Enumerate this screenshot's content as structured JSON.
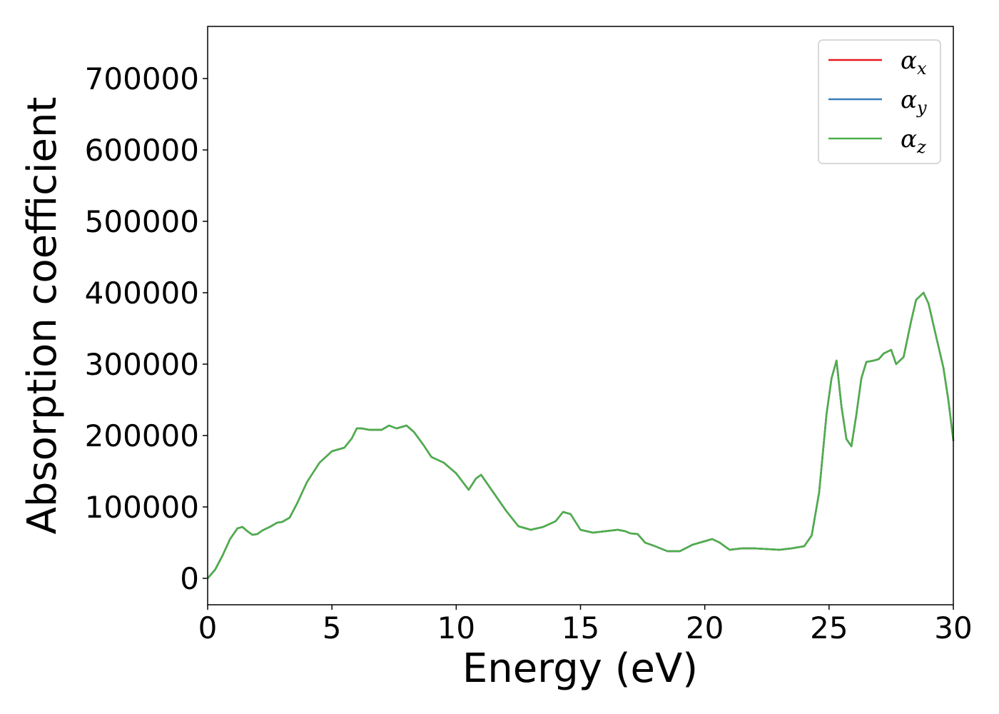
{
  "chart_data": {
    "type": "line",
    "title": "",
    "xlabel": "Energy (eV)",
    "ylabel": "Absorption coefficient",
    "xlim": [
      0,
      30
    ],
    "ylim": [
      -37000,
      773000
    ],
    "xticks": [
      0,
      5,
      10,
      15,
      20,
      25,
      30
    ],
    "xtick_labels": [
      "0",
      "5",
      "10",
      "15",
      "20",
      "25",
      "30"
    ],
    "yticks": [
      0,
      100000,
      200000,
      300000,
      400000,
      500000,
      600000,
      700000
    ],
    "ytick_labels": [
      "0",
      "100000",
      "200000",
      "300000",
      "400000",
      "500000",
      "600000",
      "700000"
    ],
    "grid": false,
    "legend_position": "top-right",
    "x": [
      0,
      0.3,
      0.6,
      0.9,
      1.2,
      1.4,
      1.6,
      1.8,
      2.0,
      2.2,
      2.5,
      2.8,
      3.0,
      3.3,
      3.6,
      4.0,
      4.5,
      5.0,
      5.5,
      5.8,
      6.0,
      6.2,
      6.5,
      7.0,
      7.3,
      7.6,
      8.0,
      8.3,
      8.7,
      9.0,
      9.5,
      10.0,
      10.5,
      10.8,
      11.0,
      11.5,
      12.0,
      12.5,
      13.0,
      13.5,
      14.0,
      14.3,
      14.6,
      15.0,
      15.5,
      16.0,
      16.5,
      16.8,
      17.0,
      17.3,
      17.6,
      18.0,
      18.5,
      19.0,
      19.5,
      20.0,
      20.3,
      20.6,
      21.0,
      21.5,
      22.0,
      22.5,
      23.0,
      23.5,
      24.0,
      24.3,
      24.6,
      24.9,
      25.1,
      25.3,
      25.5,
      25.7,
      25.9,
      26.1,
      26.3,
      26.5,
      26.8,
      27.0,
      27.2,
      27.5,
      27.7,
      28.0,
      28.3,
      28.5,
      28.8,
      29.0,
      29.3,
      29.6,
      29.8,
      30.0
    ],
    "series": [
      {
        "name": "α_x",
        "color": "#e41a1c",
        "values": [
          0,
          12000,
          32000,
          55000,
          70000,
          72000,
          66000,
          61000,
          62000,
          67000,
          72000,
          78000,
          79000,
          85000,
          105000,
          135000,
          162000,
          178000,
          183000,
          196000,
          210000,
          210000,
          208000,
          208000,
          214000,
          210000,
          214000,
          205000,
          186000,
          170000,
          162000,
          147000,
          124000,
          140000,
          145000,
          120000,
          95000,
          73000,
          68000,
          72000,
          80000,
          93000,
          90000,
          68000,
          64000,
          66000,
          68000,
          66000,
          63000,
          62000,
          50000,
          45000,
          38000,
          38000,
          47000,
          52000,
          55000,
          50000,
          40000,
          42000,
          42000,
          41000,
          40000,
          42000,
          45000,
          60000,
          120000,
          230000,
          280000,
          305000,
          240000,
          195000,
          185000,
          230000,
          280000,
          303000,
          305000,
          307000,
          315000,
          320000,
          300000,
          310000,
          360000,
          390000,
          400000,
          385000,
          340000,
          295000,
          250000,
          193000
        ]
      },
      {
        "name": "α_y",
        "color": "#377eb8",
        "values": [
          0,
          12000,
          32000,
          55000,
          70000,
          72000,
          66000,
          61000,
          62000,
          67000,
          72000,
          78000,
          79000,
          85000,
          105000,
          135000,
          162000,
          178000,
          183000,
          196000,
          210000,
          210000,
          208000,
          208000,
          214000,
          210000,
          214000,
          205000,
          186000,
          170000,
          162000,
          147000,
          124000,
          140000,
          145000,
          120000,
          95000,
          73000,
          68000,
          72000,
          80000,
          93000,
          90000,
          68000,
          64000,
          66000,
          68000,
          66000,
          63000,
          62000,
          50000,
          45000,
          38000,
          38000,
          47000,
          52000,
          55000,
          50000,
          40000,
          42000,
          42000,
          41000,
          40000,
          42000,
          45000,
          60000,
          120000,
          230000,
          280000,
          305000,
          240000,
          195000,
          185000,
          230000,
          280000,
          303000,
          305000,
          307000,
          315000,
          320000,
          300000,
          310000,
          360000,
          390000,
          400000,
          385000,
          340000,
          295000,
          250000,
          193000
        ]
      },
      {
        "name": "α_z",
        "color": "#4daf4a",
        "values": [
          0,
          12000,
          32000,
          55000,
          70000,
          72000,
          66000,
          61000,
          62000,
          67000,
          72000,
          78000,
          79000,
          85000,
          105000,
          135000,
          162000,
          178000,
          183000,
          196000,
          210000,
          210000,
          208000,
          208000,
          214000,
          210000,
          214000,
          205000,
          186000,
          170000,
          162000,
          147000,
          124000,
          140000,
          145000,
          120000,
          95000,
          73000,
          68000,
          72000,
          80000,
          93000,
          90000,
          68000,
          64000,
          66000,
          68000,
          66000,
          63000,
          62000,
          50000,
          45000,
          38000,
          38000,
          47000,
          52000,
          55000,
          50000,
          40000,
          42000,
          42000,
          41000,
          40000,
          42000,
          45000,
          60000,
          120000,
          230000,
          280000,
          305000,
          240000,
          195000,
          185000,
          230000,
          280000,
          303000,
          305000,
          307000,
          315000,
          320000,
          300000,
          310000,
          360000,
          390000,
          400000,
          385000,
          340000,
          295000,
          250000,
          193000
        ]
      }
    ],
    "legend": [
      {
        "symbol": "α",
        "sub": "x",
        "color": "#e41a1c"
      },
      {
        "symbol": "α",
        "sub": "y",
        "color": "#377eb8"
      },
      {
        "symbol": "α",
        "sub": "z",
        "color": "#4daf4a"
      }
    ]
  }
}
